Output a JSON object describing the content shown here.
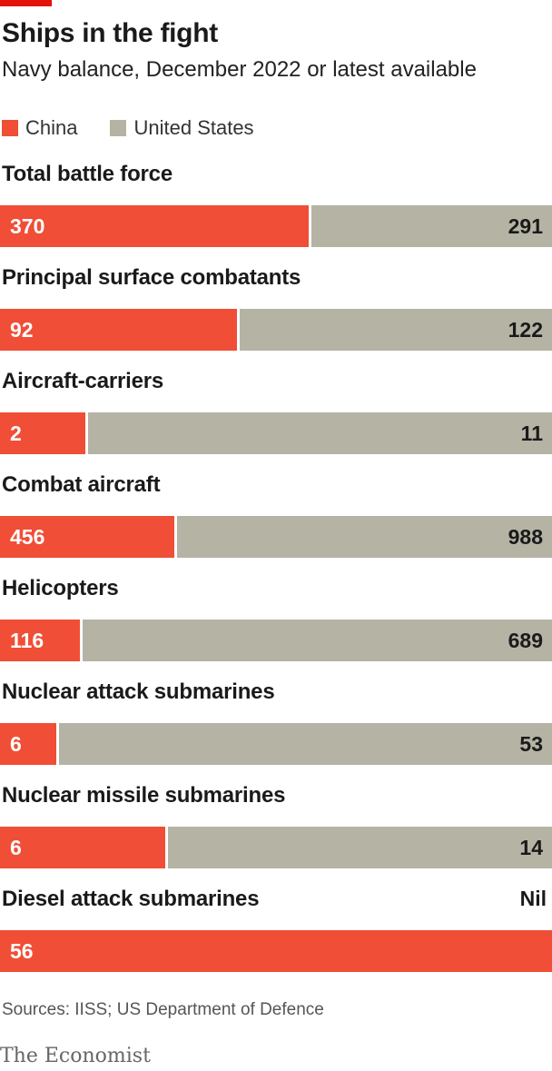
{
  "header": {
    "title": "Ships in the fight",
    "subtitle": "Navy balance, December 2022 or latest available"
  },
  "legend": [
    {
      "name": "China",
      "color": "#f04e36"
    },
    {
      "name": "United States",
      "color": "#b5b3a4"
    }
  ],
  "chart_data": {
    "type": "bar",
    "stacked": "100-percent-horizontal",
    "categories": [
      "Total battle force",
      "Principal surface combatants",
      "Aircraft-carriers",
      "Combat aircraft",
      "Helicopters",
      "Nuclear attack submarines",
      "Nuclear missile submarines",
      "Diesel attack submarines"
    ],
    "series": [
      {
        "name": "China",
        "values": [
          370,
          92,
          2,
          456,
          116,
          6,
          6,
          56
        ],
        "labels": [
          "370",
          "92",
          "2",
          "456",
          "116",
          "6",
          "6",
          "56"
        ]
      },
      {
        "name": "United States",
        "values": [
          291,
          122,
          11,
          988,
          689,
          53,
          14,
          0
        ],
        "labels": [
          "291",
          "122",
          "11",
          "988",
          "689",
          "53",
          "14",
          "Nil"
        ]
      }
    ],
    "colors": {
      "China": "#f04e36",
      "United States": "#b5b3a4"
    },
    "grid": false,
    "legend_position": "top-left"
  },
  "footer": {
    "source": "Sources: IISS; US Department of Defence",
    "brand": "The Economist"
  }
}
